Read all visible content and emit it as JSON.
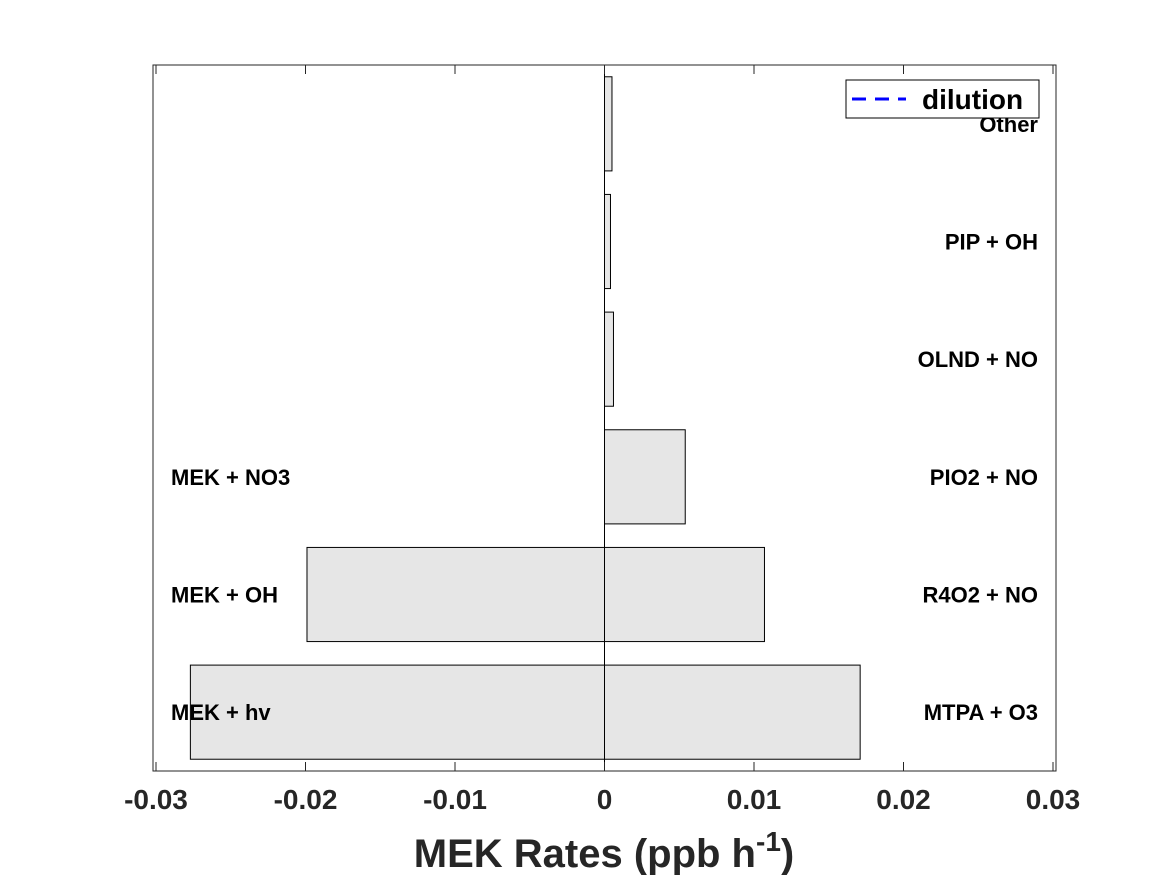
{
  "chart_data": {
    "type": "bar",
    "orientation": "horizontal",
    "stacked_diverging": true,
    "xlabel": {
      "main": "MEK Rates (ppb h",
      "superscript": "-1",
      "suffix": ")"
    },
    "xlim": [
      -0.0302,
      0.0302
    ],
    "xticks": [
      -0.03,
      -0.02,
      -0.01,
      0,
      0.01,
      0.02,
      0.03
    ],
    "xtick_labels": [
      "-0.03",
      "-0.02",
      "-0.01",
      "0",
      "0.01",
      "0.02",
      "0.03"
    ],
    "grid": false,
    "legend": {
      "position": "top-right",
      "entries": [
        {
          "label": "dilution",
          "style": "dashed",
          "color": "#0000ff"
        }
      ]
    },
    "bar_color": "#e6e6e6",
    "rows": [
      {
        "production_label": "MTPA + O3",
        "production": 0.0171,
        "loss_label": "MEK + hv",
        "loss": -0.0277
      },
      {
        "production_label": "R4O2 + NO",
        "production": 0.0107,
        "loss_label": "MEK + OH",
        "loss": -0.0199
      },
      {
        "production_label": "PIO2 + NO",
        "production": 0.0054,
        "loss_label": "MEK + NO3",
        "loss": 0
      },
      {
        "production_label": "OLND + NO",
        "production": 0.0006,
        "loss_label": "",
        "loss": 0
      },
      {
        "production_label": "PIP + OH",
        "production": 0.0004,
        "loss_label": "",
        "loss": 0
      },
      {
        "production_label": "Other",
        "production": 0.0005,
        "loss_label": "",
        "loss": 0
      }
    ]
  }
}
